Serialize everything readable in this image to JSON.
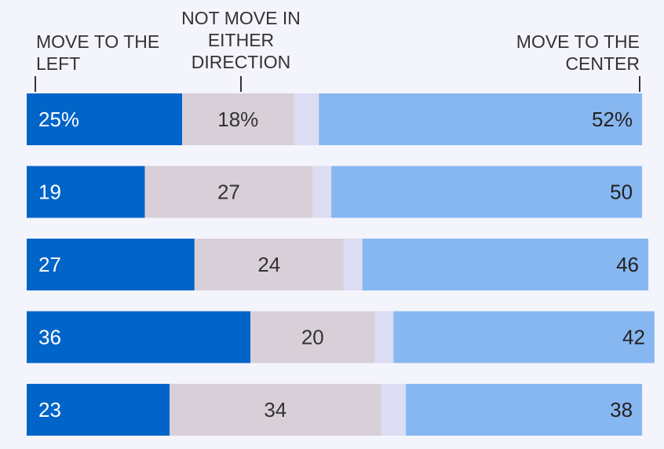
{
  "chart_data": {
    "type": "bar",
    "stacked": true,
    "orientation": "horizontal",
    "xlim": [
      0,
      100
    ],
    "gap_percent": 4,
    "first_row_suffix": "%",
    "series": [
      {
        "name": "MOVE TO THE LEFT",
        "values": [
          25,
          19,
          27,
          36,
          23
        ],
        "color": "#0064c8",
        "label_color": "#ffffff",
        "label_align": "left"
      },
      {
        "name": "NOT MOVE IN EITHER DIRECTION",
        "values": [
          18,
          27,
          24,
          20,
          34
        ],
        "color": "#d8cfd8",
        "label_color": "#333333",
        "label_align": "center"
      },
      {
        "name": "",
        "values": [
          4,
          3,
          3,
          3,
          4
        ],
        "color": "#dcdcf2",
        "label_color": "#333333",
        "label_align": "none"
      },
      {
        "name": "MOVE TO THE CENTER",
        "values": [
          52,
          50,
          46,
          42,
          38
        ],
        "color": "#87b7f0",
        "label_color": "#222222",
        "label_align": "right"
      }
    ]
  },
  "headers": {
    "left": [
      "MOVE TO THE",
      "LEFT"
    ],
    "middle": [
      "NOT MOVE IN",
      "EITHER",
      "DIRECTION"
    ],
    "right": [
      "MOVE TO THE",
      "CENTER"
    ]
  }
}
